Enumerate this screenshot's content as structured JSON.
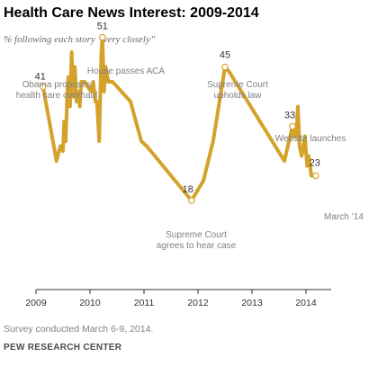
{
  "title": "Health Care News Interest: 2009-2014",
  "subtitle": "% following each story “very closely”",
  "note": "Survey conducted March 6-9, 2014.",
  "source": "PEW RESEARCH CENTER",
  "colors": {
    "line": "#d4a22b",
    "axis": "#333333",
    "annotation": "#808080"
  },
  "chart_data": {
    "type": "line",
    "title": "Health Care News Interest: 2009-2014",
    "subtitle": "% following each story “very closely”",
    "xlabel": "",
    "ylabel": "",
    "x_ticks": [
      2009,
      2010,
      2011,
      2012,
      2013,
      2014
    ],
    "xlim": [
      2009.0,
      2014.4
    ],
    "ylim": [
      0,
      55
    ],
    "grid": false,
    "series": [
      {
        "points": [
          [
            2009.13,
            41
          ],
          [
            2009.38,
            26
          ],
          [
            2009.45,
            29
          ],
          [
            2009.5,
            28
          ],
          [
            2009.52,
            34
          ],
          [
            2009.55,
            30
          ],
          [
            2009.58,
            40
          ],
          [
            2009.6,
            43
          ],
          [
            2009.63,
            37
          ],
          [
            2009.66,
            48
          ],
          [
            2009.69,
            39
          ],
          [
            2009.72,
            45
          ],
          [
            2009.75,
            38
          ],
          [
            2009.78,
            40
          ],
          [
            2009.81,
            37
          ],
          [
            2009.84,
            42
          ],
          [
            2009.9,
            42
          ],
          [
            2009.96,
            41
          ],
          [
            2010.02,
            40
          ],
          [
            2010.06,
            42
          ],
          [
            2010.1,
            38
          ],
          [
            2010.13,
            38
          ],
          [
            2010.17,
            30
          ],
          [
            2010.21,
            48
          ],
          [
            2010.23,
            51
          ],
          [
            2010.26,
            40
          ],
          [
            2010.29,
            45
          ],
          [
            2010.34,
            42
          ],
          [
            2010.42,
            42
          ],
          [
            2010.75,
            38
          ],
          [
            2010.95,
            30
          ],
          [
            2011.05,
            29
          ],
          [
            2011.88,
            18
          ],
          [
            2012.1,
            22
          ],
          [
            2012.28,
            30
          ],
          [
            2012.5,
            45
          ],
          [
            2012.58,
            44
          ],
          [
            2013.6,
            26
          ],
          [
            2013.75,
            33
          ],
          [
            2013.78,
            31
          ],
          [
            2013.82,
            31
          ],
          [
            2013.85,
            37
          ],
          [
            2013.88,
            29
          ],
          [
            2013.92,
            27
          ],
          [
            2013.98,
            31
          ],
          [
            2014.02,
            25
          ],
          [
            2014.05,
            27
          ],
          [
            2014.1,
            23
          ],
          [
            2014.18,
            23
          ]
        ]
      }
    ],
    "value_labels": [
      {
        "x": 2009.13,
        "y": 41,
        "text": "41"
      },
      {
        "x": 2010.23,
        "y": 51,
        "text": "51"
      },
      {
        "x": 2011.88,
        "y": 18,
        "text": "18"
      },
      {
        "x": 2012.5,
        "y": 45,
        "text": "45"
      },
      {
        "x": 2013.75,
        "y": 33,
        "text": "33"
      },
      {
        "x": 2014.18,
        "y": 23,
        "text": "23"
      }
    ],
    "annotations": [
      {
        "x": 2009.13,
        "y": 41,
        "lines": [
          "Obama proposes",
          "health care overhaul"
        ]
      },
      {
        "x": 2010.23,
        "y": 51,
        "lines": [
          "House passes ACA"
        ]
      },
      {
        "x": 2011.88,
        "y": 18,
        "lines": [
          "Supreme Court",
          "agrees to hear case"
        ]
      },
      {
        "x": 2012.5,
        "y": 45,
        "lines": [
          "Supreme Court",
          "upholds law"
        ]
      },
      {
        "x": 2013.75,
        "y": 33,
        "lines": [
          "Website launches"
        ]
      },
      {
        "x": 2014.18,
        "y": 23,
        "lines": [
          "March ’14"
        ]
      }
    ]
  }
}
